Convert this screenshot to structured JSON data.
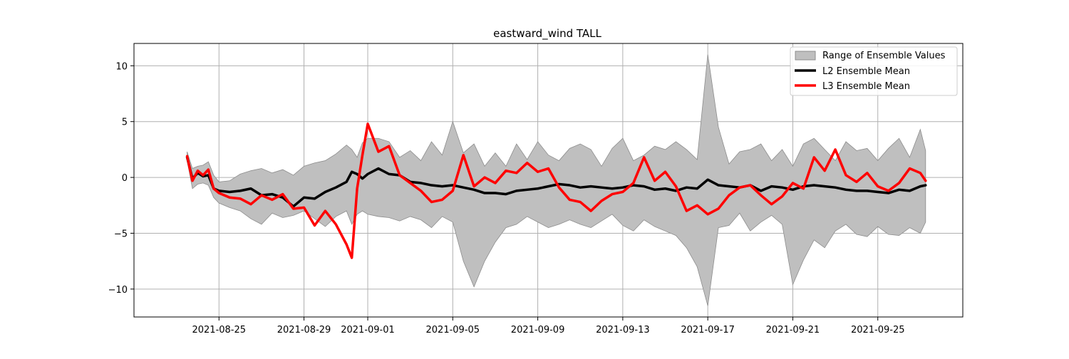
{
  "chart_data": {
    "type": "line",
    "title": "eastward_wind TALL",
    "xlabel": "",
    "ylabel": "",
    "x_range": [
      "2021-08-21",
      "2021-09-29"
    ],
    "ylim": [
      -12.5,
      12
    ],
    "x_ticks": [
      "2021-08-25",
      "2021-08-29",
      "2021-09-01",
      "2021-09-05",
      "2021-09-09",
      "2021-09-13",
      "2021-09-17",
      "2021-09-21",
      "2021-09-25"
    ],
    "y_ticks": [
      10,
      5,
      0,
      -5,
      -10
    ],
    "y_tick_labels": [
      "10",
      "5",
      "0",
      "−5",
      "−10"
    ],
    "grid": true,
    "legend_position": "top-right",
    "colors": {
      "range_fill": "#bfbfbf",
      "range_edge": "#8c8c8c",
      "l2": "#000000",
      "l3": "#ff0000",
      "grid": "#b0b0b0"
    },
    "series": [
      {
        "name": "Range of Ensemble Values",
        "kind": "band",
        "x": [
          "2021-08-23T12:00",
          "2021-08-23T18:00",
          "2021-08-24T00:00",
          "2021-08-24T06:00",
          "2021-08-24T12:00",
          "2021-08-24T18:00",
          "2021-08-25T00:00",
          "2021-08-25T12:00",
          "2021-08-26T00:00",
          "2021-08-26T12:00",
          "2021-08-27T00:00",
          "2021-08-27T12:00",
          "2021-08-28T00:00",
          "2021-08-28T12:00",
          "2021-08-29T00:00",
          "2021-08-29T12:00",
          "2021-08-30T00:00",
          "2021-08-30T12:00",
          "2021-08-31T00:00",
          "2021-08-31T06:00",
          "2021-08-31T12:00",
          "2021-08-31T18:00",
          "2021-09-01T00:00",
          "2021-09-01T12:00",
          "2021-09-02T00:00",
          "2021-09-02T12:00",
          "2021-09-03T00:00",
          "2021-09-03T12:00",
          "2021-09-04T00:00",
          "2021-09-04T12:00",
          "2021-09-05T00:00",
          "2021-09-05T12:00",
          "2021-09-06T00:00",
          "2021-09-06T12:00",
          "2021-09-07T00:00",
          "2021-09-07T12:00",
          "2021-09-08T00:00",
          "2021-09-08T12:00",
          "2021-09-09T00:00",
          "2021-09-09T12:00",
          "2021-09-10T00:00",
          "2021-09-10T12:00",
          "2021-09-11T00:00",
          "2021-09-11T12:00",
          "2021-09-12T00:00",
          "2021-09-12T12:00",
          "2021-09-13T00:00",
          "2021-09-13T12:00",
          "2021-09-14T00:00",
          "2021-09-14T12:00",
          "2021-09-15T00:00",
          "2021-09-15T12:00",
          "2021-09-16T00:00",
          "2021-09-16T12:00",
          "2021-09-17T00:00",
          "2021-09-17T12:00",
          "2021-09-18T00:00",
          "2021-09-18T12:00",
          "2021-09-19T00:00",
          "2021-09-19T12:00",
          "2021-09-20T00:00",
          "2021-09-20T12:00",
          "2021-09-21T00:00",
          "2021-09-21T12:00",
          "2021-09-22T00:00",
          "2021-09-22T12:00",
          "2021-09-23T00:00",
          "2021-09-23T12:00",
          "2021-09-24T00:00",
          "2021-09-24T12:00",
          "2021-09-25T00:00",
          "2021-09-25T12:00",
          "2021-09-26T00:00",
          "2021-09-26T12:00",
          "2021-09-27T00:00",
          "2021-09-27T06:00"
        ],
        "upper": [
          2.3,
          0.8,
          1.0,
          1.1,
          1.4,
          0.2,
          -0.4,
          -0.3,
          0.3,
          0.6,
          0.8,
          0.4,
          0.7,
          0.2,
          1.0,
          1.3,
          1.5,
          2.1,
          2.9,
          2.5,
          1.8,
          3.1,
          3.5,
          3.5,
          3.2,
          1.8,
          2.4,
          1.5,
          3.2,
          2.0,
          5.0,
          2.2,
          3.0,
          1.0,
          2.2,
          1.0,
          3.0,
          1.6,
          3.2,
          2.0,
          1.5,
          2.6,
          3.0,
          2.5,
          1.0,
          2.6,
          3.5,
          1.5,
          2.0,
          2.8,
          2.5,
          3.2,
          2.5,
          1.6,
          11.0,
          4.5,
          1.2,
          2.3,
          2.5,
          3.0,
          1.5,
          2.5,
          1.0,
          3.0,
          3.5,
          2.5,
          1.5,
          3.2,
          2.4,
          2.6,
          1.5,
          2.6,
          3.5,
          1.8,
          4.3,
          2.4
        ],
        "lower": [
          1.5,
          -1.0,
          -0.6,
          -0.5,
          -0.7,
          -1.8,
          -2.3,
          -2.7,
          -3.0,
          -3.7,
          -4.2,
          -3.2,
          -3.6,
          -3.4,
          -3.0,
          -3.7,
          -4.4,
          -3.5,
          -3.0,
          -4.2,
          -3.3,
          -3.0,
          -3.3,
          -3.5,
          -3.6,
          -3.9,
          -3.5,
          -3.8,
          -4.5,
          -3.5,
          -4.0,
          -7.5,
          -9.8,
          -7.5,
          -5.8,
          -4.5,
          -4.2,
          -3.5,
          -4.0,
          -4.5,
          -4.2,
          -3.8,
          -4.2,
          -4.5,
          -3.9,
          -3.3,
          -4.3,
          -4.8,
          -3.8,
          -4.4,
          -4.8,
          -5.2,
          -6.3,
          -8.0,
          -11.5,
          -4.5,
          -4.3,
          -3.2,
          -4.8,
          -4.0,
          -3.4,
          -4.2,
          -9.6,
          -7.4,
          -5.6,
          -6.3,
          -4.8,
          -4.2,
          -5.1,
          -5.3,
          -4.4,
          -5.1,
          -5.2,
          -4.5,
          -5.0,
          -4.0
        ]
      },
      {
        "name": "L2 Ensemble Mean",
        "kind": "line",
        "x": [
          "2021-08-23T12:00",
          "2021-08-23T18:00",
          "2021-08-24T00:00",
          "2021-08-24T06:00",
          "2021-08-24T12:00",
          "2021-08-24T18:00",
          "2021-08-25T00:00",
          "2021-08-25T12:00",
          "2021-08-26T00:00",
          "2021-08-26T12:00",
          "2021-08-27T00:00",
          "2021-08-27T12:00",
          "2021-08-28T00:00",
          "2021-08-28T12:00",
          "2021-08-29T00:00",
          "2021-08-29T12:00",
          "2021-08-30T00:00",
          "2021-08-30T12:00",
          "2021-08-31T00:00",
          "2021-08-31T06:00",
          "2021-08-31T12:00",
          "2021-08-31T18:00",
          "2021-09-01T00:00",
          "2021-09-01T12:00",
          "2021-09-02T00:00",
          "2021-09-02T12:00",
          "2021-09-03T00:00",
          "2021-09-03T12:00",
          "2021-09-04T00:00",
          "2021-09-04T12:00",
          "2021-09-05T00:00",
          "2021-09-05T12:00",
          "2021-09-06T00:00",
          "2021-09-06T12:00",
          "2021-09-07T00:00",
          "2021-09-07T12:00",
          "2021-09-08T00:00",
          "2021-09-08T12:00",
          "2021-09-09T00:00",
          "2021-09-09T12:00",
          "2021-09-10T00:00",
          "2021-09-10T12:00",
          "2021-09-11T00:00",
          "2021-09-11T12:00",
          "2021-09-12T00:00",
          "2021-09-12T12:00",
          "2021-09-13T00:00",
          "2021-09-13T12:00",
          "2021-09-14T00:00",
          "2021-09-14T12:00",
          "2021-09-15T00:00",
          "2021-09-15T12:00",
          "2021-09-16T00:00",
          "2021-09-16T12:00",
          "2021-09-17T00:00",
          "2021-09-17T12:00",
          "2021-09-18T00:00",
          "2021-09-18T12:00",
          "2021-09-19T00:00",
          "2021-09-19T12:00",
          "2021-09-20T00:00",
          "2021-09-20T12:00",
          "2021-09-21T00:00",
          "2021-09-21T12:00",
          "2021-09-22T00:00",
          "2021-09-22T12:00",
          "2021-09-23T00:00",
          "2021-09-23T12:00",
          "2021-09-24T00:00",
          "2021-09-24T12:00",
          "2021-09-25T00:00",
          "2021-09-25T12:00",
          "2021-09-26T00:00",
          "2021-09-26T12:00",
          "2021-09-27T00:00",
          "2021-09-27T06:00"
        ],
        "values": [
          1.8,
          -0.1,
          0.4,
          0.1,
          0.2,
          -1.0,
          -1.2,
          -1.3,
          -1.2,
          -1.0,
          -1.6,
          -1.5,
          -1.8,
          -2.6,
          -1.8,
          -1.9,
          -1.3,
          -0.9,
          -0.4,
          0.5,
          0.3,
          -0.1,
          0.3,
          0.8,
          0.3,
          0.2,
          -0.4,
          -0.5,
          -0.7,
          -0.8,
          -0.7,
          -0.9,
          -1.1,
          -1.4,
          -1.4,
          -1.5,
          -1.2,
          -1.1,
          -1.0,
          -0.8,
          -0.6,
          -0.7,
          -0.9,
          -0.8,
          -0.9,
          -1.0,
          -0.9,
          -0.7,
          -0.8,
          -1.1,
          -1.0,
          -1.2,
          -0.9,
          -1.0,
          -0.2,
          -0.7,
          -0.8,
          -0.9,
          -0.7,
          -1.2,
          -0.8,
          -0.9,
          -1.1,
          -0.8,
          -0.7,
          -0.8,
          -0.9,
          -1.1,
          -1.2,
          -1.2,
          -1.3,
          -1.4,
          -1.1,
          -1.2,
          -0.8,
          -0.7
        ]
      },
      {
        "name": "L3 Ensemble Mean",
        "kind": "line",
        "x": [
          "2021-08-23T12:00",
          "2021-08-23T18:00",
          "2021-08-24T00:00",
          "2021-08-24T06:00",
          "2021-08-24T12:00",
          "2021-08-24T18:00",
          "2021-08-25T00:00",
          "2021-08-25T12:00",
          "2021-08-26T00:00",
          "2021-08-26T12:00",
          "2021-08-27T00:00",
          "2021-08-27T12:00",
          "2021-08-28T00:00",
          "2021-08-28T12:00",
          "2021-08-29T00:00",
          "2021-08-29T12:00",
          "2021-08-30T00:00",
          "2021-08-30T12:00",
          "2021-08-31T00:00",
          "2021-08-31T06:00",
          "2021-08-31T12:00",
          "2021-08-31T18:00",
          "2021-09-01T00:00",
          "2021-09-01T12:00",
          "2021-09-02T00:00",
          "2021-09-02T12:00",
          "2021-09-03T00:00",
          "2021-09-03T12:00",
          "2021-09-04T00:00",
          "2021-09-04T12:00",
          "2021-09-05T00:00",
          "2021-09-05T12:00",
          "2021-09-06T00:00",
          "2021-09-06T12:00",
          "2021-09-07T00:00",
          "2021-09-07T12:00",
          "2021-09-08T00:00",
          "2021-09-08T12:00",
          "2021-09-09T00:00",
          "2021-09-09T12:00",
          "2021-09-10T00:00",
          "2021-09-10T12:00",
          "2021-09-11T00:00",
          "2021-09-11T12:00",
          "2021-09-12T00:00",
          "2021-09-12T12:00",
          "2021-09-13T00:00",
          "2021-09-13T12:00",
          "2021-09-14T00:00",
          "2021-09-14T12:00",
          "2021-09-15T00:00",
          "2021-09-15T12:00",
          "2021-09-16T00:00",
          "2021-09-16T12:00",
          "2021-09-17T00:00",
          "2021-09-17T12:00",
          "2021-09-18T00:00",
          "2021-09-18T12:00",
          "2021-09-19T00:00",
          "2021-09-19T12:00",
          "2021-09-20T00:00",
          "2021-09-20T12:00",
          "2021-09-21T00:00",
          "2021-09-21T12:00",
          "2021-09-22T00:00",
          "2021-09-22T12:00",
          "2021-09-23T00:00",
          "2021-09-23T12:00",
          "2021-09-24T00:00",
          "2021-09-24T12:00",
          "2021-09-25T00:00",
          "2021-09-25T12:00",
          "2021-09-26T00:00",
          "2021-09-26T12:00",
          "2021-09-27T00:00",
          "2021-09-27T06:00"
        ],
        "values": [
          1.9,
          -0.3,
          0.6,
          0.2,
          0.7,
          -1.0,
          -1.4,
          -1.8,
          -1.9,
          -2.4,
          -1.6,
          -2.0,
          -1.5,
          -2.8,
          -2.7,
          -4.3,
          -3.0,
          -4.2,
          -6.0,
          -7.2,
          -1.0,
          2.0,
          4.8,
          2.3,
          2.8,
          0.2,
          -0.5,
          -1.2,
          -2.2,
          -2.0,
          -1.2,
          2.0,
          -0.8,
          0.0,
          -0.5,
          0.6,
          0.4,
          1.3,
          0.5,
          0.8,
          -0.9,
          -2.0,
          -2.2,
          -3.0,
          -2.1,
          -1.5,
          -1.3,
          -0.5,
          1.8,
          -0.3,
          0.5,
          -0.8,
          -3.0,
          -2.5,
          -3.3,
          -2.8,
          -1.6,
          -0.9,
          -0.7,
          -1.6,
          -2.4,
          -1.7,
          -0.5,
          -1.0,
          1.8,
          0.6,
          2.5,
          0.2,
          -0.4,
          0.4,
          -0.8,
          -1.2,
          -0.5,
          0.8,
          0.4,
          -0.3
        ]
      }
    ]
  }
}
